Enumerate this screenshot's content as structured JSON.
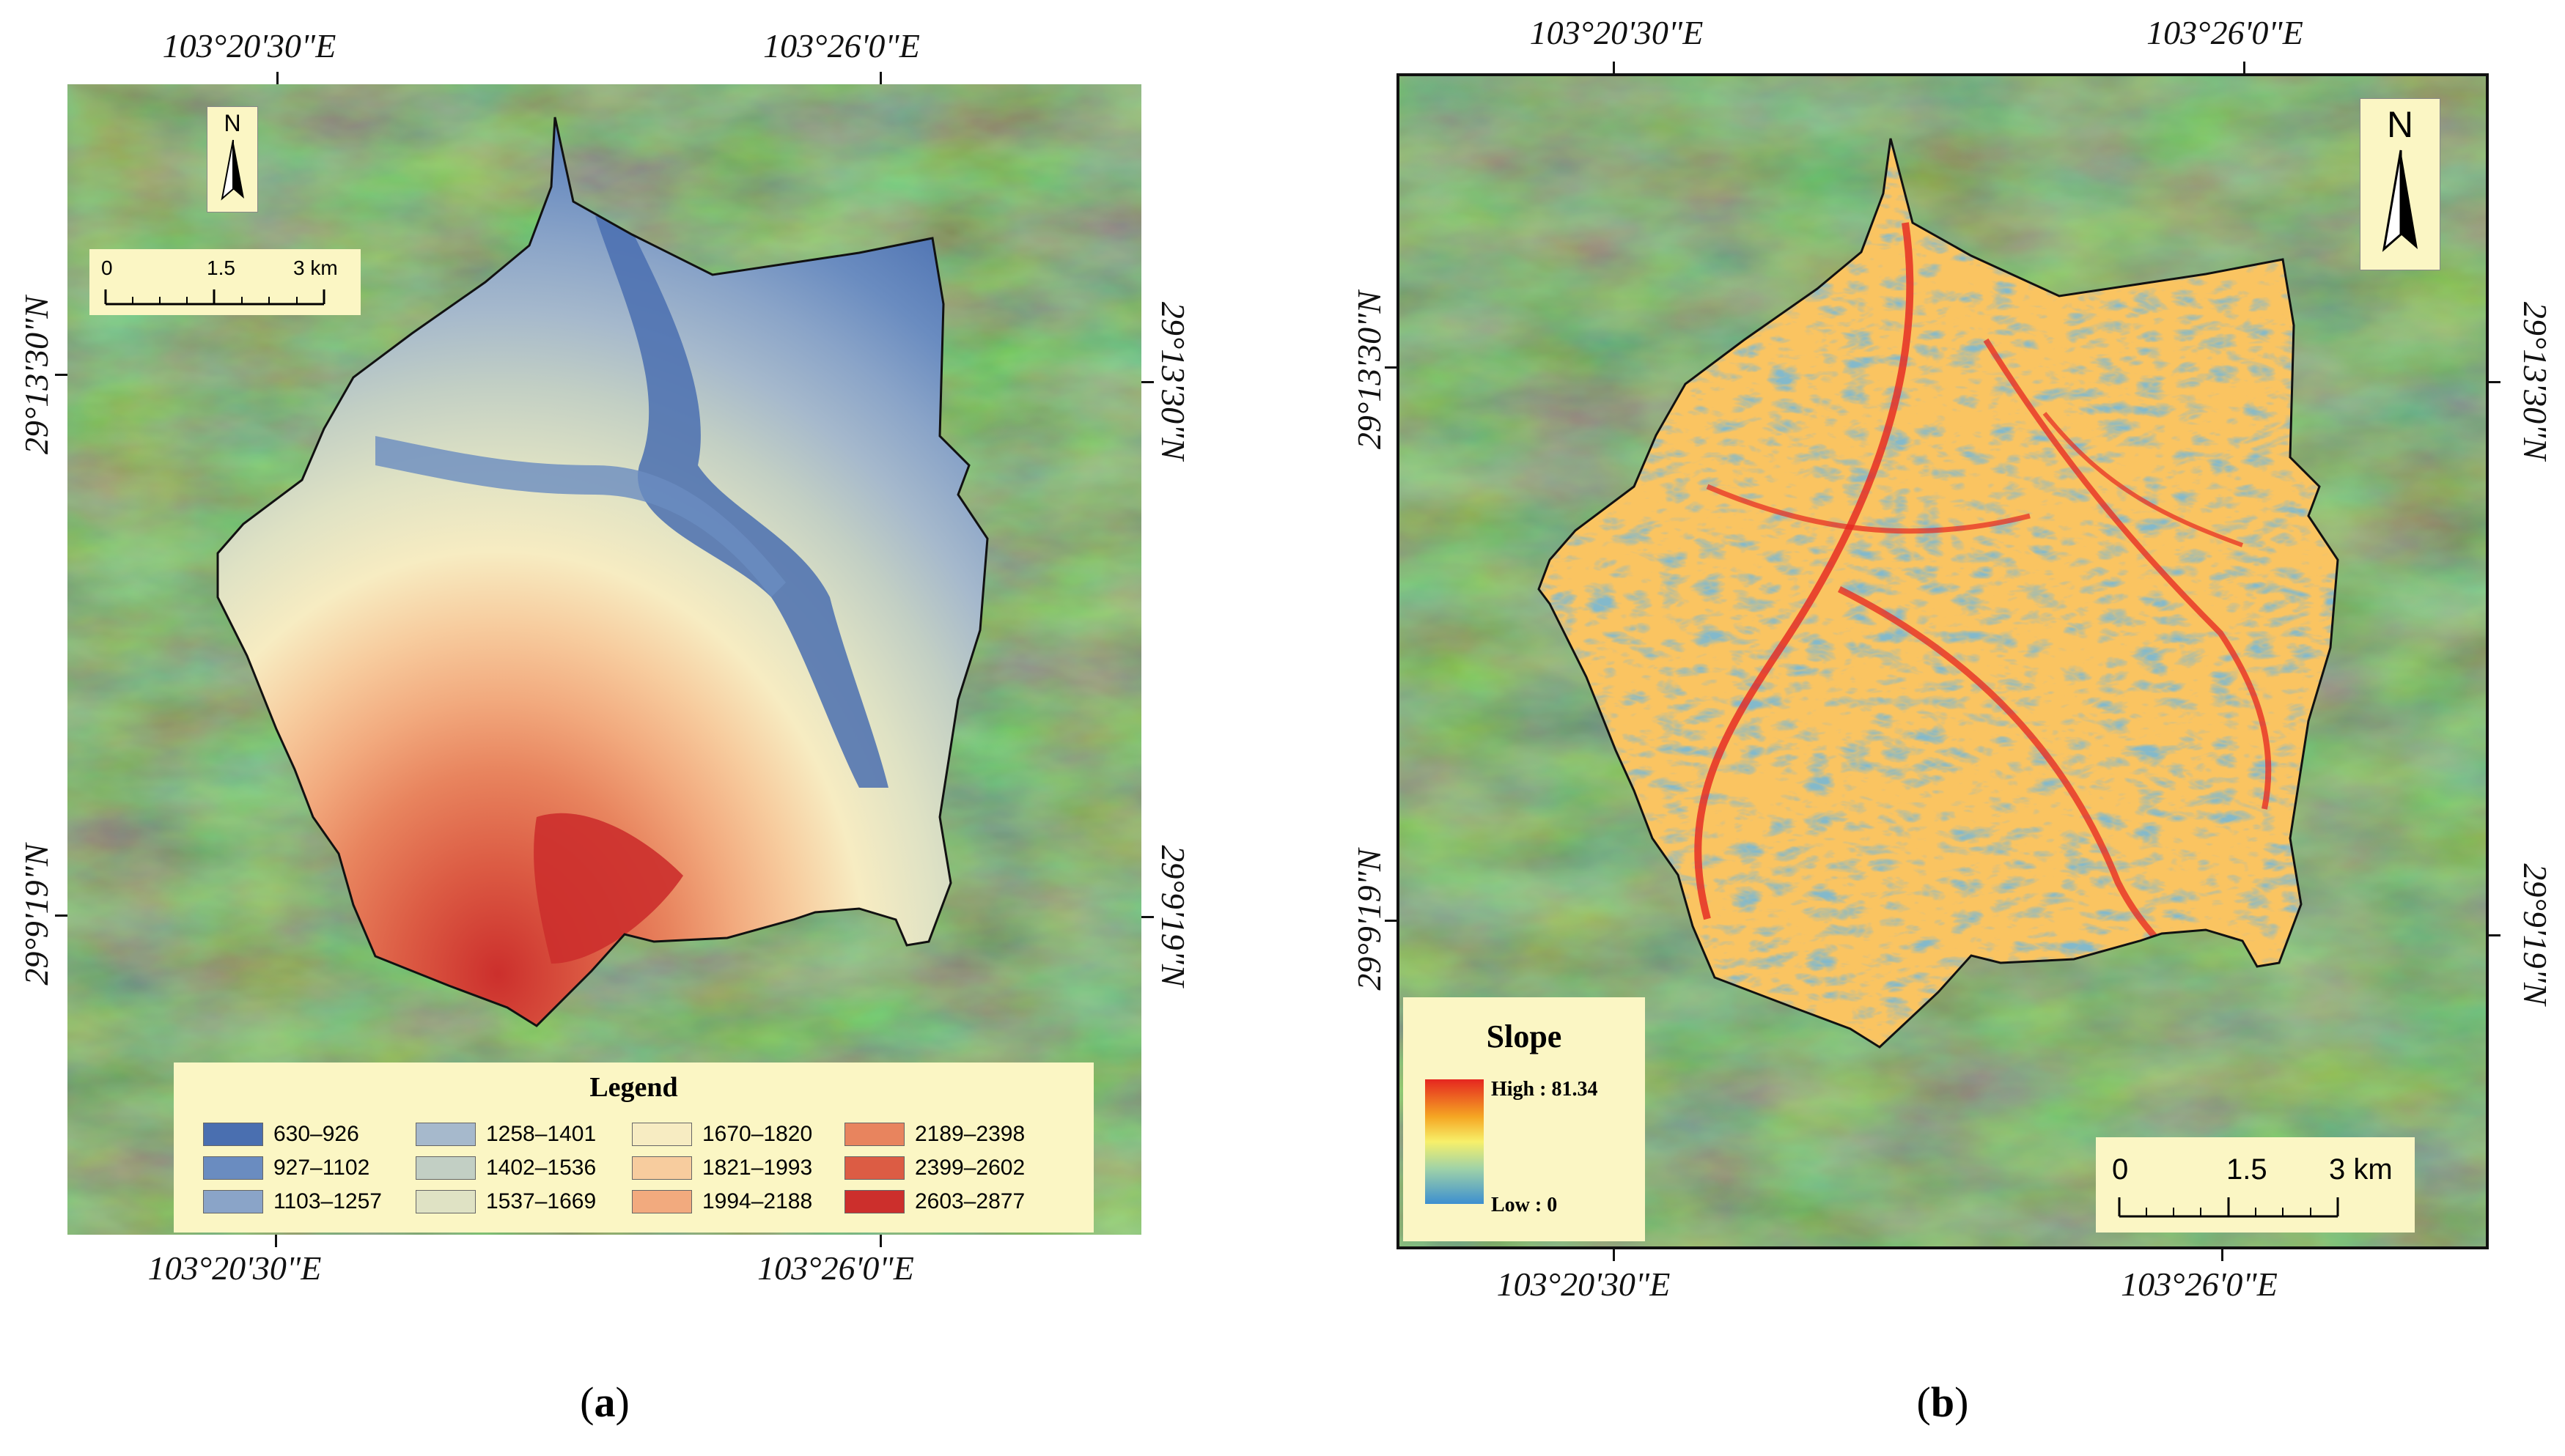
{
  "panel_a": {
    "coords": {
      "top_left": "103°20'30\"E",
      "top_right": "103°26'0\"E",
      "bottom_left": "103°20'30\"E",
      "bottom_right": "103°26'0\"E",
      "left_upper": "29°13'30\"N",
      "left_lower": "29°9'19\"N",
      "right_upper": "29°13'30\"N",
      "right_lower": "29°9'19\"N"
    },
    "north": "N",
    "scale": {
      "l0": "0",
      "l1": "1.5",
      "l2": "3 km"
    },
    "legend": {
      "title": "Legend",
      "items": [
        {
          "label": "630–926",
          "color": "#4a6fb0"
        },
        {
          "label": "927–1102",
          "color": "#6a8cc0"
        },
        {
          "label": "1103–1257",
          "color": "#8aa4c8"
        },
        {
          "label": "1258–1401",
          "color": "#a6b9cc"
        },
        {
          "label": "1402–1536",
          "color": "#c2cfc4"
        },
        {
          "label": "1537–1669",
          "color": "#dfe2c4"
        },
        {
          "label": "1670–1820",
          "color": "#f7ecc2"
        },
        {
          "label": "1821–1993",
          "color": "#f7cc9e"
        },
        {
          "label": "1994–2188",
          "color": "#f2aa7e"
        },
        {
          "label": "2189–2398",
          "color": "#e8845e"
        },
        {
          "label": "2399–2602",
          "color": "#dc5c44"
        },
        {
          "label": "2603–2877",
          "color": "#cc2f2c"
        }
      ]
    },
    "caption_letter": "a"
  },
  "panel_b": {
    "coords": {
      "top_left": "103°20'30\"E",
      "top_right": "103°26'0\"E",
      "bottom_left": "103°20'30\"E",
      "bottom_right": "103°26'0\"E",
      "left_upper": "29°13'30\"N",
      "left_lower": "29°9'19\"N",
      "right_upper": "29°13'30\"N",
      "right_lower": "29°9'19\"N"
    },
    "north": "N",
    "scale": {
      "l0": "0",
      "l1": "1.5",
      "l2": "3 km"
    },
    "slope_legend": {
      "title": "Slope",
      "high": "High : 81.34",
      "low": "Low : 0"
    },
    "ramp_colors": [
      "#e52620",
      "#f5a623",
      "#f7f06a",
      "#9ed2a8",
      "#3d8fd0"
    ],
    "caption_letter": "b"
  },
  "colors": {
    "satellite_base": "#4f7a3c",
    "boundary": "#111111",
    "legend_bg": "#fbf6c4"
  }
}
